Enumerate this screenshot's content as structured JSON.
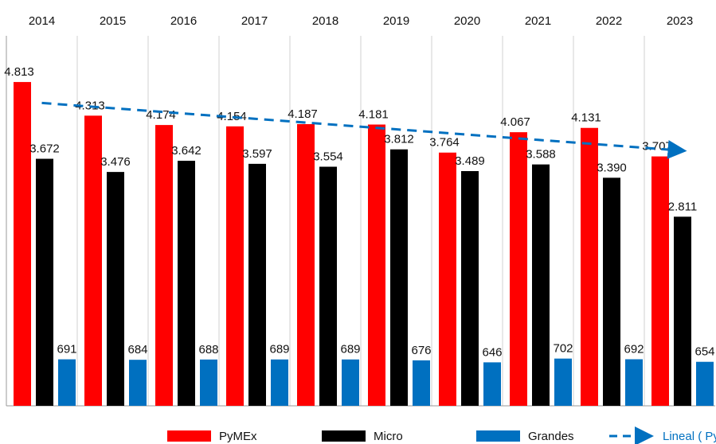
{
  "chart_data": {
    "type": "bar",
    "categories": [
      "2014",
      "2015",
      "2016",
      "2017",
      "2018",
      "2019",
      "2020",
      "2021",
      "2022",
      "2023"
    ],
    "series": [
      {
        "name": "PyMEx",
        "color": "#ff0000",
        "values": [
          4813,
          4313,
          4174,
          4154,
          4187,
          4181,
          3764,
          4067,
          4131,
          3707
        ],
        "value_labels": [
          "4.813",
          "4.313",
          "4.174",
          "4.154",
          "4.187",
          "4.181",
          "3.764",
          "4.067",
          "4.131",
          "3.707"
        ]
      },
      {
        "name": "Micro",
        "color": "#000000",
        "values": [
          3672,
          3476,
          3642,
          3597,
          3554,
          3812,
          3489,
          3588,
          3390,
          2811
        ],
        "value_labels": [
          "3.672",
          "3.476",
          "3.642",
          "3.597",
          "3.554",
          "3.812",
          "3.489",
          "3.588",
          "3.390",
          "2.811"
        ]
      },
      {
        "name": "Grandes",
        "color": "#0070c0",
        "values": [
          691,
          684,
          688,
          689,
          689,
          676,
          646,
          702,
          692,
          654
        ]
      }
    ],
    "trend": {
      "name": "Lineal ( PyMEx)",
      "color": "#0070c0",
      "values": [
        4502,
        4424,
        4345,
        4267,
        4188,
        4110,
        4032,
        3953,
        3875,
        3796
      ]
    },
    "ylim": [
      0,
      5500
    ],
    "grid": true,
    "legend": "bottom"
  }
}
